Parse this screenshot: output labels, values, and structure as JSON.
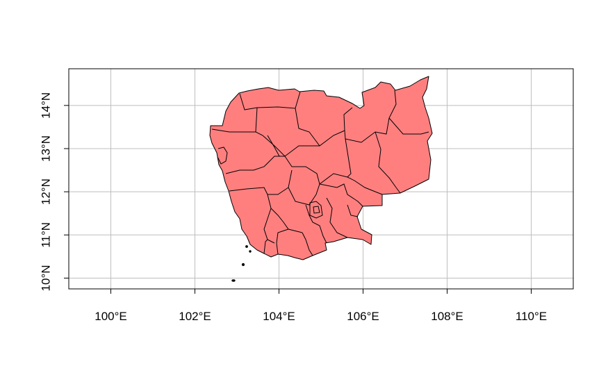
{
  "map": {
    "fill_color": "#FF7F7F",
    "border_color": "#000000",
    "grid_color": "#BEBEBE",
    "grid": true,
    "x_ticks": [
      {
        "value": 100,
        "label": "100°E"
      },
      {
        "value": 102,
        "label": "102°E"
      },
      {
        "value": 104,
        "label": "104°E"
      },
      {
        "value": 106,
        "label": "106°E"
      },
      {
        "value": 108,
        "label": "108°E"
      },
      {
        "value": 110,
        "label": "110°E"
      }
    ],
    "y_ticks": [
      {
        "value": 10,
        "label": "10°N"
      },
      {
        "value": 11,
        "label": "11°N"
      },
      {
        "value": 12,
        "label": "12°N"
      },
      {
        "value": 13,
        "label": "13°N"
      },
      {
        "value": 14,
        "label": "14°N"
      }
    ],
    "xlim": [
      99.0,
      111.0
    ],
    "ylim": [
      9.75,
      14.85
    ]
  }
}
